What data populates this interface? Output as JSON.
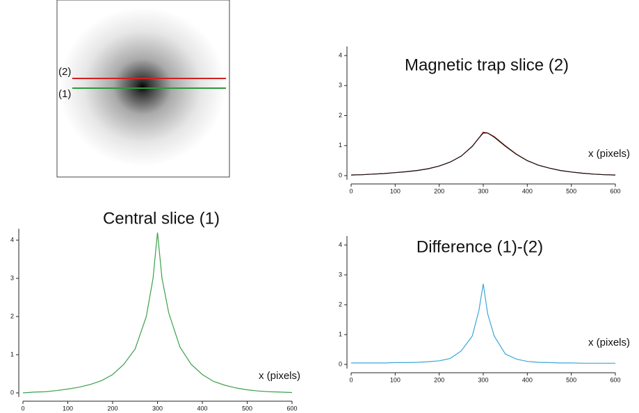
{
  "image": {
    "labels": [
      "(2)",
      "(1)"
    ]
  },
  "chart_data": [
    {
      "type": "line",
      "title": "Magnetic trap slice (2)",
      "x_label": "x (pixels)",
      "x": [
        0,
        25,
        50,
        75,
        100,
        125,
        150,
        175,
        200,
        225,
        250,
        275,
        290,
        300,
        310,
        325,
        350,
        375,
        400,
        425,
        450,
        475,
        500,
        525,
        550,
        575,
        600
      ],
      "series": [
        {
          "color": "#d02020",
          "values": [
            0.02,
            0.03,
            0.05,
            0.07,
            0.1,
            0.13,
            0.17,
            0.23,
            0.32,
            0.45,
            0.65,
            0.98,
            1.25,
            1.45,
            1.42,
            1.3,
            1.0,
            0.72,
            0.5,
            0.35,
            0.25,
            0.17,
            0.12,
            0.08,
            0.05,
            0.03,
            0.02
          ]
        },
        {
          "color": "#111111",
          "values": [
            0.02,
            0.03,
            0.05,
            0.07,
            0.1,
            0.13,
            0.17,
            0.23,
            0.32,
            0.45,
            0.65,
            0.97,
            1.25,
            1.42,
            1.42,
            1.28,
            0.98,
            0.71,
            0.5,
            0.35,
            0.25,
            0.17,
            0.12,
            0.08,
            0.05,
            0.03,
            0.02
          ]
        }
      ],
      "xlim": [
        0,
        600
      ],
      "ylim": [
        0,
        4.3
      ],
      "xticks": [
        0,
        100,
        200,
        300,
        400,
        500,
        600
      ],
      "yticks": [
        0,
        1,
        2,
        3,
        4
      ]
    },
    {
      "type": "line",
      "title": "Central slice (1)",
      "x_label": "x (pixels)",
      "x": [
        0,
        25,
        50,
        75,
        100,
        125,
        150,
        175,
        200,
        225,
        250,
        275,
        290,
        300,
        310,
        325,
        350,
        375,
        400,
        425,
        450,
        475,
        500,
        525,
        550,
        575,
        600
      ],
      "series": [
        {
          "color": "#3aa04a",
          "values": [
            0.0,
            0.02,
            0.03,
            0.06,
            0.1,
            0.15,
            0.22,
            0.32,
            0.48,
            0.75,
            1.15,
            2.0,
            3.0,
            4.2,
            3.0,
            2.1,
            1.2,
            0.75,
            0.48,
            0.3,
            0.2,
            0.13,
            0.08,
            0.05,
            0.03,
            0.02,
            0.01
          ]
        }
      ],
      "xlim": [
        0,
        600
      ],
      "ylim": [
        0,
        4.3
      ],
      "xticks": [
        0,
        100,
        200,
        300,
        400,
        500,
        600
      ],
      "yticks": [
        0,
        1,
        2,
        3,
        4
      ]
    },
    {
      "type": "line",
      "title": "Difference (1)-(2)",
      "x_label": "x (pixels)",
      "x": [
        0,
        25,
        50,
        75,
        100,
        125,
        150,
        175,
        200,
        225,
        250,
        275,
        290,
        300,
        310,
        325,
        350,
        375,
        400,
        425,
        450,
        475,
        500,
        525,
        550,
        575,
        600
      ],
      "series": [
        {
          "color": "#3aa6d8",
          "values": [
            0.05,
            0.05,
            0.05,
            0.05,
            0.06,
            0.06,
            0.07,
            0.09,
            0.12,
            0.2,
            0.45,
            0.95,
            1.8,
            2.7,
            1.7,
            0.95,
            0.35,
            0.18,
            0.1,
            0.07,
            0.06,
            0.05,
            0.05,
            0.04,
            0.04,
            0.04,
            0.04
          ]
        }
      ],
      "xlim": [
        0,
        600
      ],
      "ylim": [
        0,
        4.3
      ],
      "xticks": [
        0,
        100,
        200,
        300,
        400,
        500,
        600
      ],
      "yticks": [
        0,
        1,
        2,
        3,
        4
      ]
    }
  ]
}
